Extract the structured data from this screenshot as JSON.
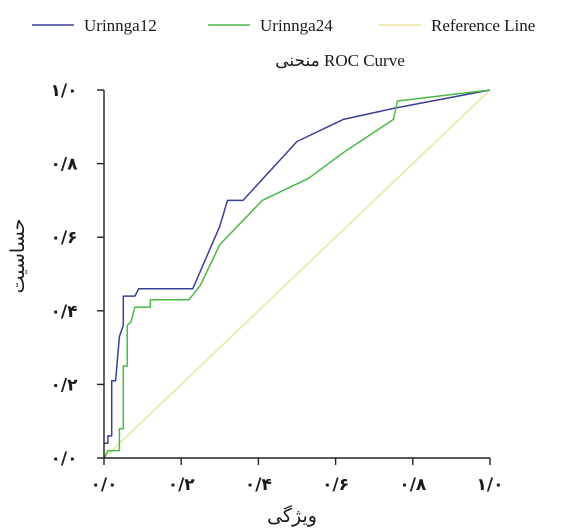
{
  "chart_data": {
    "type": "line",
    "title": "منحنی  ROC Curve",
    "xlabel": "ویژگی",
    "ylabel": "حساسیت",
    "xlim": [
      0,
      1
    ],
    "ylim": [
      0,
      1
    ],
    "x_ticks": [
      {
        "value": 0.0,
        "label": "۰/۰"
      },
      {
        "value": 0.2,
        "label": "۰/۲"
      },
      {
        "value": 0.4,
        "label": "۰/۴"
      },
      {
        "value": 0.6,
        "label": "۰/۶"
      },
      {
        "value": 0.8,
        "label": "۰/۸"
      },
      {
        "value": 1.0,
        "label": "۱/۰"
      }
    ],
    "y_ticks": [
      {
        "value": 0.0,
        "label": "۰/۰"
      },
      {
        "value": 0.2,
        "label": "۰/۲"
      },
      {
        "value": 0.4,
        "label": "۰/۴"
      },
      {
        "value": 0.6,
        "label": "۰/۶"
      },
      {
        "value": 0.8,
        "label": "۰/۸"
      },
      {
        "value": 1.0,
        "label": "۱/۰"
      }
    ],
    "grid": false,
    "legend_position": "top",
    "series": [
      {
        "name": "Urinnga12",
        "color": "#3a3f9a",
        "points": [
          [
            0.0,
            0.04
          ],
          [
            0.01,
            0.04
          ],
          [
            0.01,
            0.06
          ],
          [
            0.02,
            0.06
          ],
          [
            0.02,
            0.21
          ],
          [
            0.03,
            0.21
          ],
          [
            0.04,
            0.33
          ],
          [
            0.05,
            0.36
          ],
          [
            0.05,
            0.44
          ],
          [
            0.08,
            0.44
          ],
          [
            0.09,
            0.46
          ],
          [
            0.23,
            0.46
          ],
          [
            0.3,
            0.63
          ],
          [
            0.32,
            0.7
          ],
          [
            0.36,
            0.7
          ],
          [
            0.5,
            0.86
          ],
          [
            0.62,
            0.92
          ],
          [
            0.75,
            0.95
          ],
          [
            1.0,
            1.0
          ]
        ]
      },
      {
        "name": "Urinnga24",
        "color": "#4cb848",
        "points": [
          [
            0.0,
            0.0
          ],
          [
            0.01,
            0.02
          ],
          [
            0.02,
            0.02
          ],
          [
            0.04,
            0.02
          ],
          [
            0.04,
            0.08
          ],
          [
            0.05,
            0.08
          ],
          [
            0.05,
            0.25
          ],
          [
            0.06,
            0.25
          ],
          [
            0.06,
            0.36
          ],
          [
            0.07,
            0.37
          ],
          [
            0.08,
            0.41
          ],
          [
            0.12,
            0.41
          ],
          [
            0.12,
            0.43
          ],
          [
            0.22,
            0.43
          ],
          [
            0.25,
            0.47
          ],
          [
            0.3,
            0.58
          ],
          [
            0.41,
            0.7
          ],
          [
            0.53,
            0.76
          ],
          [
            0.62,
            0.83
          ],
          [
            0.75,
            0.92
          ],
          [
            0.76,
            0.97
          ],
          [
            1.0,
            1.0
          ]
        ]
      },
      {
        "name": "Reference Line",
        "color": "#e8e6a0",
        "points": [
          [
            0.0,
            0.0
          ],
          [
            1.0,
            1.0
          ]
        ]
      }
    ]
  }
}
